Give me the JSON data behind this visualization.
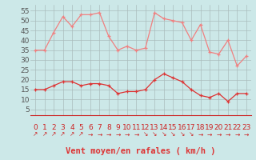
{
  "x": [
    0,
    1,
    2,
    3,
    4,
    5,
    6,
    7,
    8,
    9,
    10,
    11,
    12,
    13,
    14,
    15,
    16,
    17,
    18,
    19,
    20,
    21,
    22,
    23
  ],
  "wind_avg": [
    15,
    15,
    17,
    19,
    19,
    17,
    18,
    18,
    17,
    13,
    14,
    14,
    15,
    20,
    23,
    21,
    19,
    15,
    12,
    11,
    13,
    9,
    13,
    13
  ],
  "wind_gust": [
    35,
    35,
    44,
    52,
    47,
    53,
    53,
    54,
    42,
    35,
    37,
    35,
    36,
    54,
    51,
    50,
    49,
    40,
    48,
    34,
    33,
    40,
    27,
    32
  ],
  "wind_dirs": [
    "↗",
    "↗",
    "↗",
    "↗",
    "↗",
    "↗",
    "→",
    "→",
    "→",
    "→",
    "→",
    "→",
    "↘",
    "↘",
    "↘",
    "↘",
    "↘",
    "↘",
    "→",
    "→",
    "→",
    "→",
    "→",
    "→"
  ],
  "bg_color": "#cce8e8",
  "grid_color": "#aabcbc",
  "line_avg_color": "#dd3333",
  "line_gust_color": "#f08080",
  "xlabel": "Vent moyen/en rafales ( km/h )",
  "ylabel_ticks": [
    5,
    10,
    15,
    20,
    25,
    30,
    35,
    40,
    45,
    50,
    55
  ],
  "ylim": [
    2,
    58
  ],
  "xlim": [
    -0.5,
    23.5
  ],
  "xlabel_fontsize": 7.5,
  "tick_fontsize": 6.5,
  "arrow_fontsize": 5.5
}
